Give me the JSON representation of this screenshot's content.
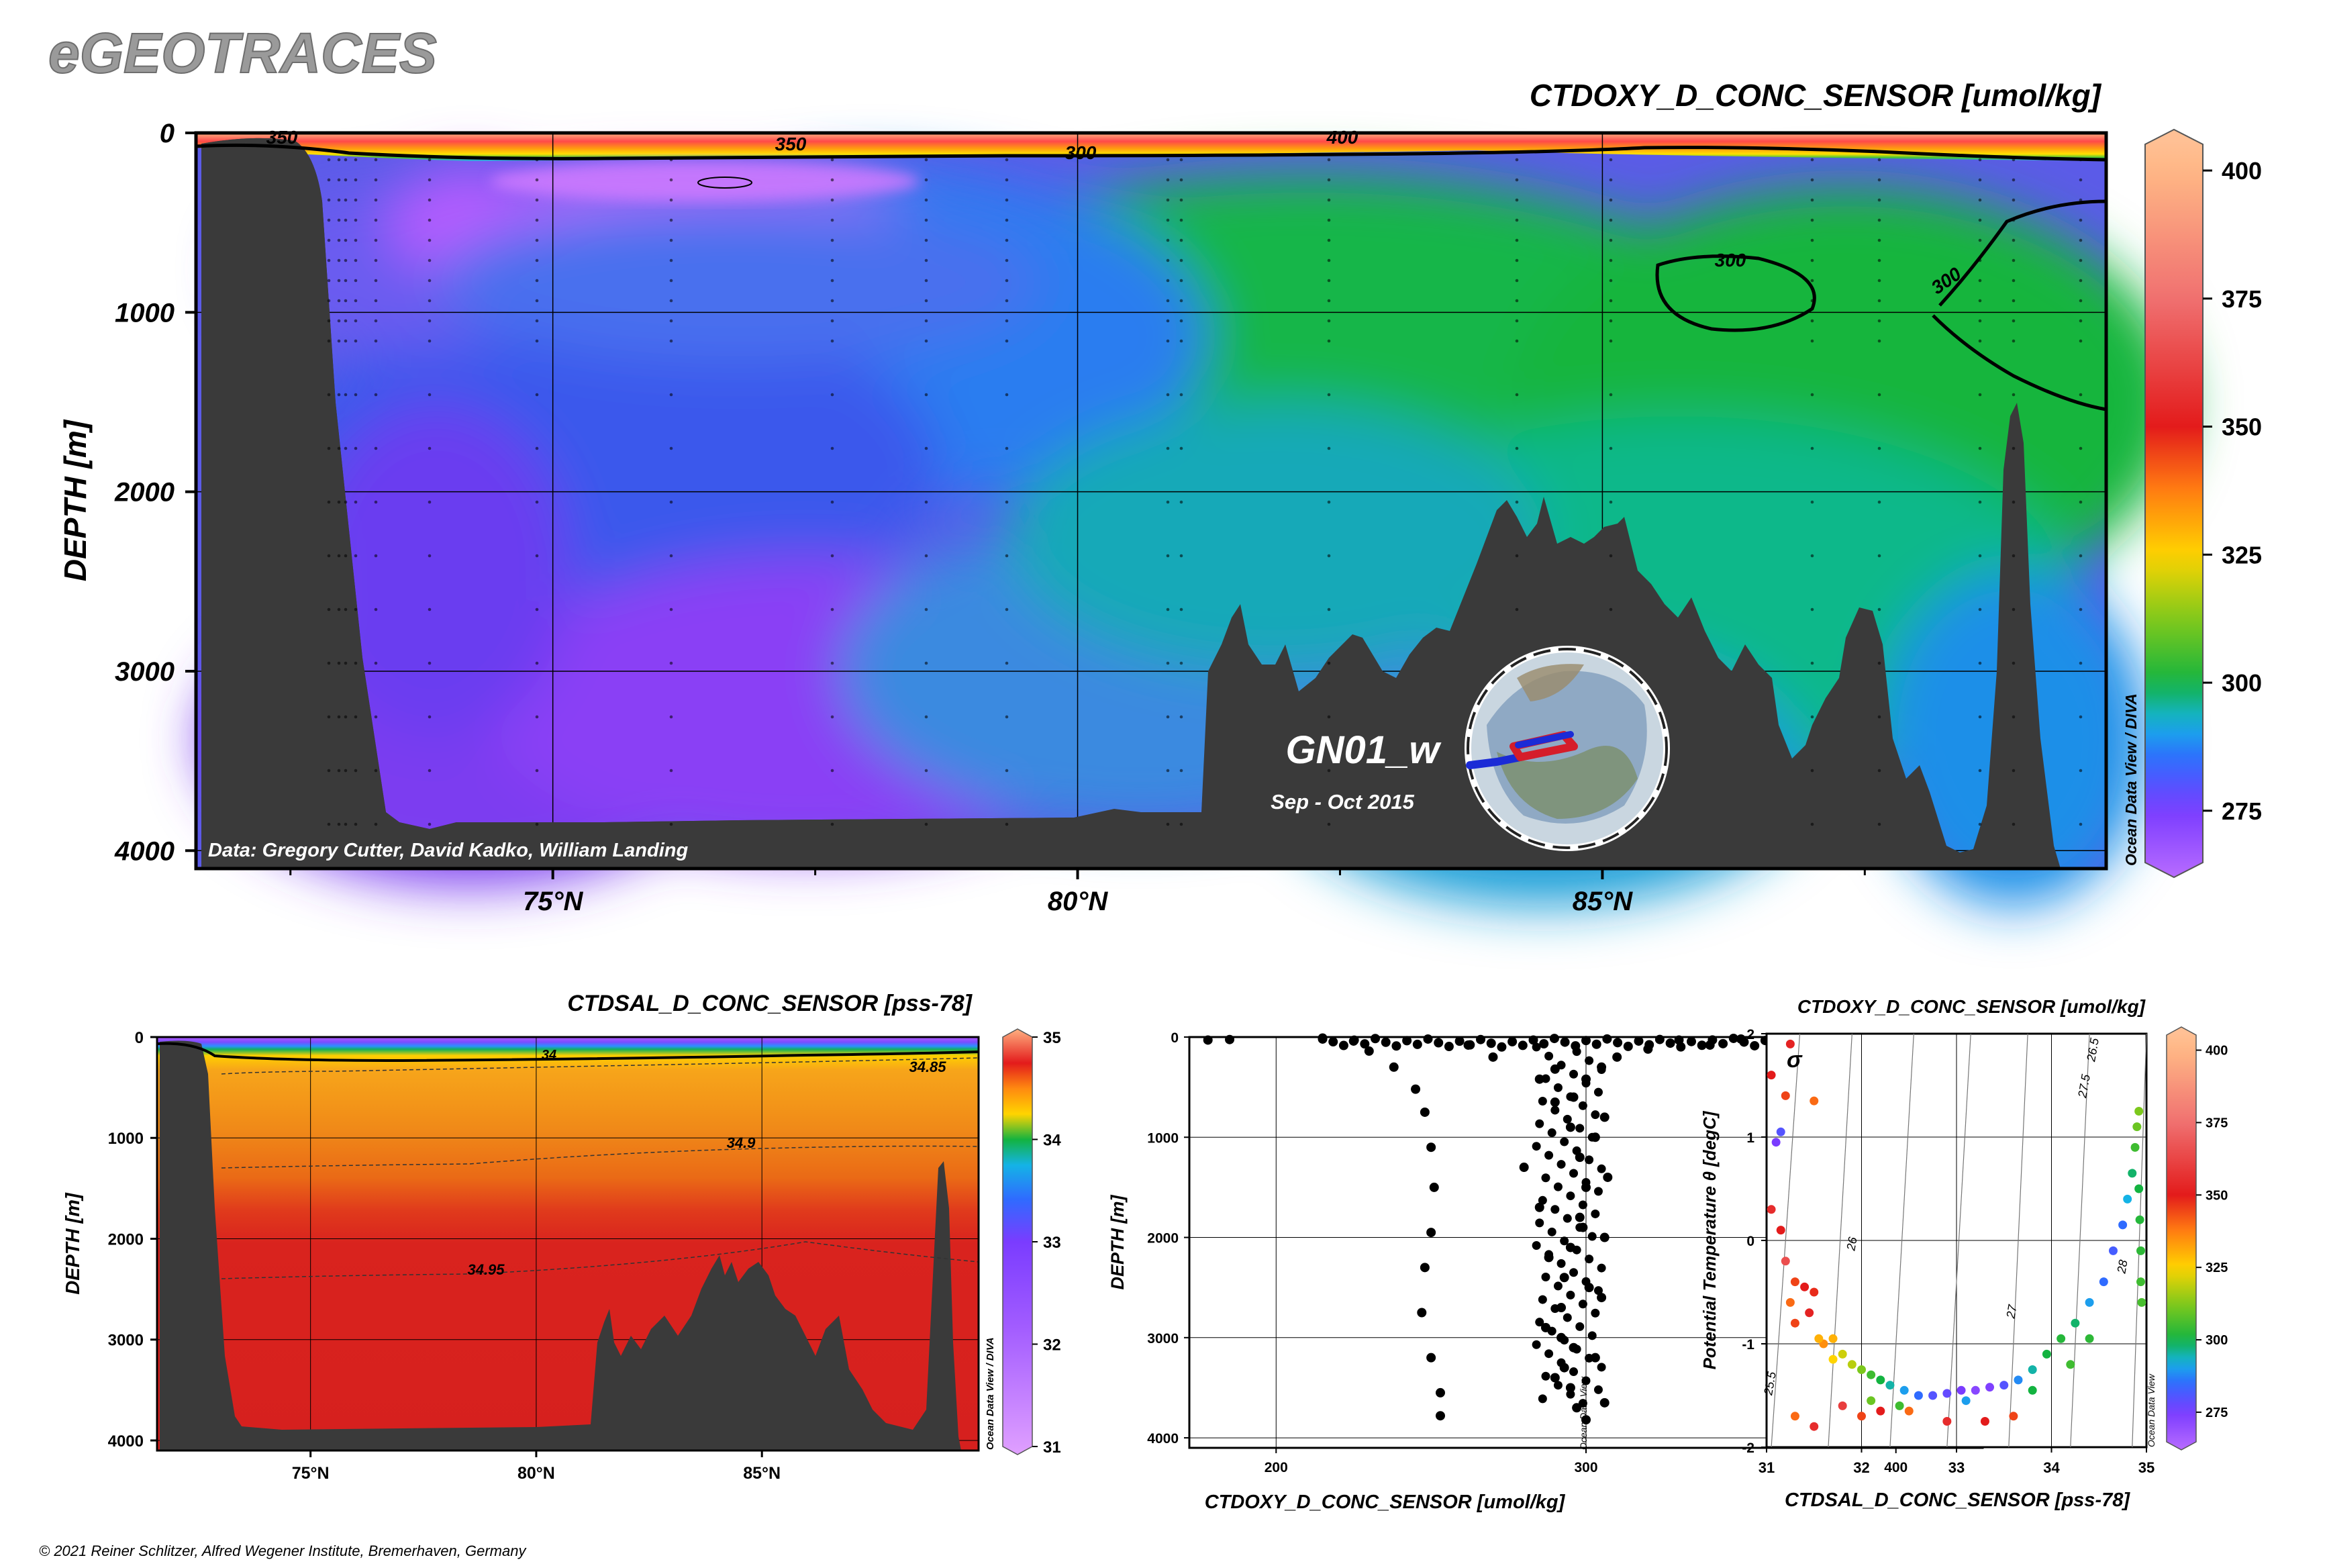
{
  "app": {
    "logo": "eGEOTRACES",
    "copyright": "© 2021 Reiner Schlitzer, Alfred Wegener Institute, Bremerhaven, Germany"
  },
  "colors": {
    "seafloor": "#3a3a3a",
    "low": "#9d3cff",
    "mid_blue": "#1f8cff",
    "green": "#15b33c",
    "yellow": "#ffd400",
    "red": "#e41c1c",
    "high": "#ffb785"
  },
  "chart_data": [
    {
      "id": "oxygen-section",
      "type": "heatmap",
      "title": "CTDOXY_D_CONC_SENSOR [umol/kg]",
      "ylabel": "DEPTH [m]",
      "xlabel": "",
      "x_ticks": [
        "75°N",
        "80°N",
        "85°N"
      ],
      "y_ticks": [
        "0",
        "1000",
        "2000",
        "3000",
        "4000"
      ],
      "xlim": [
        71.6,
        89.8
      ],
      "ylim": [
        0,
        4100
      ],
      "colorbar": {
        "range": [
          262,
          408
        ],
        "ticks": [
          "275",
          "300",
          "325",
          "350",
          "375",
          "400"
        ]
      },
      "contour_labels": [
        "350",
        "350",
        "300",
        "400",
        "300",
        "300"
      ],
      "data_credit": "Data: Gregory Cutter, David Kadko, William Landing",
      "cruise": "GN01_w",
      "period": "Sep - Oct 2015",
      "odv_tag": "Ocean Data View / DIVA",
      "grid": true
    },
    {
      "id": "salinity-section",
      "type": "heatmap",
      "title": "CTDSAL_D_CONC_SENSOR [pss-78]",
      "ylabel": "DEPTH [m]",
      "xlabel": "",
      "x_ticks": [
        "75°N",
        "80°N",
        "85°N"
      ],
      "y_ticks": [
        "0",
        "1000",
        "2000",
        "3000",
        "4000"
      ],
      "xlim": [
        71.6,
        89.8
      ],
      "ylim": [
        0,
        4100
      ],
      "colorbar": {
        "range": [
          31,
          35
        ],
        "ticks": [
          "35",
          "34",
          "33",
          "32",
          "31"
        ]
      },
      "contour_labels": [
        "34",
        "34.85",
        "34.9",
        "34.95"
      ],
      "odv_tag": "Ocean Data View / DIVA",
      "grid": true
    },
    {
      "id": "oxygen-profiles",
      "type": "scatter",
      "title": "",
      "xlabel": "CTDOXY_D_CONC_SENSOR [umol/kg]",
      "ylabel": "DEPTH [m]",
      "x_ticks": [
        "200",
        "300",
        "400"
      ],
      "y_ticks": [
        "0",
        "1000",
        "2000",
        "3000",
        "4000"
      ],
      "xlim": [
        172,
        428
      ],
      "ylim": [
        0,
        4100
      ],
      "odv_tag": "Ocean Data View",
      "grid": true,
      "points": [
        [
          178,
          30
        ],
        [
          185,
          25
        ],
        [
          215,
          20
        ],
        [
          225,
          40
        ],
        [
          230,
          140
        ],
        [
          238,
          300
        ],
        [
          245,
          520
        ],
        [
          248,
          750
        ],
        [
          250,
          1100
        ],
        [
          251,
          1500
        ],
        [
          250,
          1950
        ],
        [
          248,
          2300
        ],
        [
          247,
          2750
        ],
        [
          250,
          3200
        ],
        [
          253,
          3550
        ],
        [
          253,
          3780
        ],
        [
          262,
          80
        ],
        [
          270,
          200
        ],
        [
          285,
          420
        ],
        [
          290,
          650
        ],
        [
          295,
          900
        ],
        [
          298,
          1200
        ],
        [
          300,
          1500
        ],
        [
          298,
          1800
        ],
        [
          295,
          2100
        ],
        [
          293,
          2400
        ],
        [
          292,
          2700
        ],
        [
          292,
          3000
        ],
        [
          293,
          3300
        ],
        [
          295,
          3500
        ],
        [
          297,
          3700
        ],
        [
          300,
          3820
        ],
        [
          305,
          300
        ],
        [
          306,
          800
        ],
        [
          307,
          1400
        ],
        [
          306,
          2000
        ],
        [
          305,
          2600
        ],
        [
          303,
          3200
        ],
        [
          306,
          3650
        ],
        [
          290,
          320
        ],
        [
          300,
          420
        ],
        [
          310,
          200
        ],
        [
          320,
          120
        ],
        [
          340,
          80
        ],
        [
          360,
          60
        ],
        [
          380,
          40
        ],
        [
          400,
          30
        ],
        [
          420,
          20
        ],
        [
          330,
          30
        ],
        [
          350,
          20
        ],
        [
          370,
          25
        ],
        [
          395,
          15
        ],
        [
          410,
          10
        ],
        [
          280,
          1300
        ],
        [
          285,
          1700
        ],
        [
          288,
          2200
        ],
        [
          287,
          2900
        ],
        [
          290,
          3400
        ],
        [
          296,
          3100
        ],
        [
          301,
          2500
        ],
        [
          299,
          1900
        ],
        [
          303,
          1000
        ],
        [
          296,
          600
        ]
      ]
    },
    {
      "id": "ts-diagram",
      "type": "scatter",
      "title": "CTDOXY_D_CONC_SENSOR [umol/kg]",
      "xlabel": "CTDSAL_D_CONC_SENSOR [pss-78]",
      "ylabel": "Potential Temperature θ [degC]",
      "x_ticks": [
        "31",
        "32",
        "33",
        "34",
        "35"
      ],
      "y_ticks": [
        "2",
        "1",
        "0",
        "-1",
        "-2"
      ],
      "xlim": [
        31,
        35
      ],
      "ylim": [
        -2,
        2
      ],
      "colorbar": {
        "range": [
          262,
          408
        ],
        "ticks": [
          "400",
          "375",
          "350",
          "325",
          "300",
          "275"
        ]
      },
      "isopycnal_labels": [
        "26.5",
        "27",
        "27.5",
        "26",
        "25.5",
        "28"
      ],
      "odv_tag": "Ocean Data View",
      "grid": true,
      "points": [
        [
          31.25,
          1.9,
          352
        ],
        [
          31.2,
          1.4,
          345
        ],
        [
          31.05,
          1.6,
          350
        ],
        [
          31.5,
          1.35,
          340
        ],
        [
          31.15,
          1.05,
          280
        ],
        [
          31.1,
          0.95,
          275
        ],
        [
          31.05,
          0.3,
          355
        ],
        [
          31.15,
          0.1,
          350
        ],
        [
          31.2,
          -0.2,
          365
        ],
        [
          31.3,
          -0.4,
          345
        ],
        [
          31.4,
          -0.45,
          350
        ],
        [
          31.5,
          -0.5,
          348
        ],
        [
          31.25,
          -0.6,
          340
        ],
        [
          31.3,
          -0.8,
          345
        ],
        [
          31.45,
          -0.7,
          352
        ],
        [
          31.6,
          -1.0,
          335
        ],
        [
          31.7,
          -0.95,
          330
        ],
        [
          31.8,
          -1.1,
          320
        ],
        [
          31.9,
          -1.2,
          318
        ],
        [
          32.0,
          -1.25,
          312
        ],
        [
          32.1,
          -1.3,
          305
        ],
        [
          32.2,
          -1.35,
          300
        ],
        [
          32.3,
          -1.4,
          295
        ],
        [
          32.45,
          -1.45,
          290
        ],
        [
          32.6,
          -1.5,
          285
        ],
        [
          32.75,
          -1.5,
          280
        ],
        [
          32.9,
          -1.48,
          278
        ],
        [
          33.05,
          -1.45,
          275
        ],
        [
          33.2,
          -1.45,
          272
        ],
        [
          33.35,
          -1.42,
          274
        ],
        [
          33.5,
          -1.4,
          280
        ],
        [
          33.65,
          -1.35,
          288
        ],
        [
          33.8,
          -1.25,
          295
        ],
        [
          33.95,
          -1.1,
          300
        ],
        [
          34.1,
          -0.95,
          302
        ],
        [
          34.25,
          -0.8,
          298
        ],
        [
          34.4,
          -0.6,
          290
        ],
        [
          34.55,
          -0.4,
          285
        ],
        [
          34.65,
          -0.1,
          282
        ],
        [
          34.75,
          0.15,
          285
        ],
        [
          34.8,
          0.4,
          292
        ],
        [
          34.85,
          0.65,
          298
        ],
        [
          34.88,
          0.9,
          305
        ],
        [
          34.9,
          1.1,
          310
        ],
        [
          34.92,
          1.25,
          312
        ],
        [
          34.92,
          0.5,
          300
        ],
        [
          34.93,
          0.2,
          302
        ],
        [
          34.94,
          -0.1,
          303
        ],
        [
          34.94,
          -0.4,
          305
        ],
        [
          34.95,
          -0.6,
          306
        ],
        [
          32.2,
          -1.65,
          350
        ],
        [
          32.0,
          -1.7,
          345
        ],
        [
          32.5,
          -1.65,
          340
        ],
        [
          32.9,
          -1.75,
          355
        ],
        [
          33.3,
          -1.75,
          350
        ],
        [
          33.6,
          -1.7,
          345
        ],
        [
          31.8,
          -1.6,
          360
        ],
        [
          31.5,
          -1.8,
          355
        ],
        [
          31.3,
          -1.7,
          340
        ],
        [
          31.55,
          -0.95,
          330
        ],
        [
          31.7,
          -1.15,
          325
        ],
        [
          32.1,
          -1.55,
          310
        ],
        [
          32.4,
          -1.6,
          305
        ],
        [
          33.1,
          -1.55,
          290
        ],
        [
          33.8,
          -1.45,
          300
        ],
        [
          34.2,
          -1.2,
          305
        ],
        [
          34.4,
          -0.95,
          303
        ]
      ]
    }
  ]
}
